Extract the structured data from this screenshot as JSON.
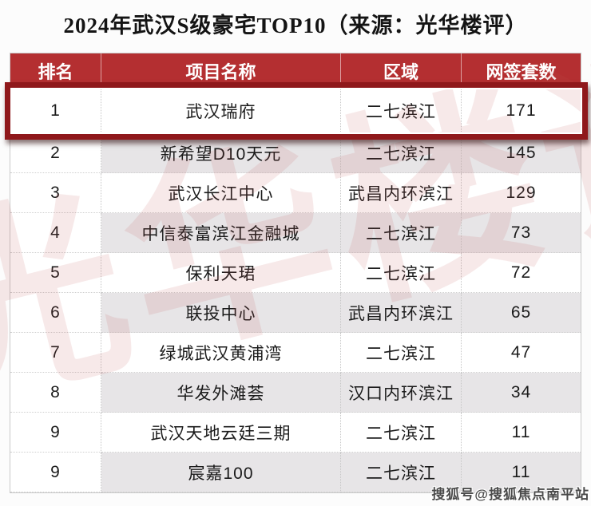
{
  "chart_data": {
    "type": "table",
    "title": "2024年武汉S级豪宅TOP10（来源：光华楼评）",
    "columns": [
      "排名",
      "项目名称",
      "区域",
      "网签套数"
    ],
    "rows": [
      [
        "1",
        "武汉瑞府",
        "二七滨江",
        "171"
      ],
      [
        "2",
        "新希望D10天元",
        "二七滨江",
        "145"
      ],
      [
        "3",
        "武汉长江中心",
        "武昌内环滨江",
        "129"
      ],
      [
        "4",
        "中信泰富滨江金融城",
        "二七滨江",
        "73"
      ],
      [
        "5",
        "保利天珺",
        "二七滨江",
        "72"
      ],
      [
        "6",
        "联投中心",
        "武昌内环滨江",
        "65"
      ],
      [
        "7",
        "绿城武汉黄浦湾",
        "二七滨江",
        "47"
      ],
      [
        "8",
        "华发外滩荟",
        "汉口内环滨江",
        "34"
      ],
      [
        "9",
        "武汉天地云廷三期",
        "二七滨江",
        "11"
      ],
      [
        "9",
        "宸嘉100",
        "二七滨江",
        "11"
      ]
    ],
    "highlighted_row_index": 0
  },
  "watermarks": {
    "diagonal_text": "光华楼评",
    "bottom_right_text": "搜狐号@搜狐焦点南平站"
  },
  "colors": {
    "header_bg": "#b42f31",
    "header_text": "#ffffff",
    "highlight_border": "#8f181b",
    "alt_row_bg": "#e7e5e7",
    "body_text": "#1b1b1b",
    "diagonal_watermark": "#c05050"
  }
}
